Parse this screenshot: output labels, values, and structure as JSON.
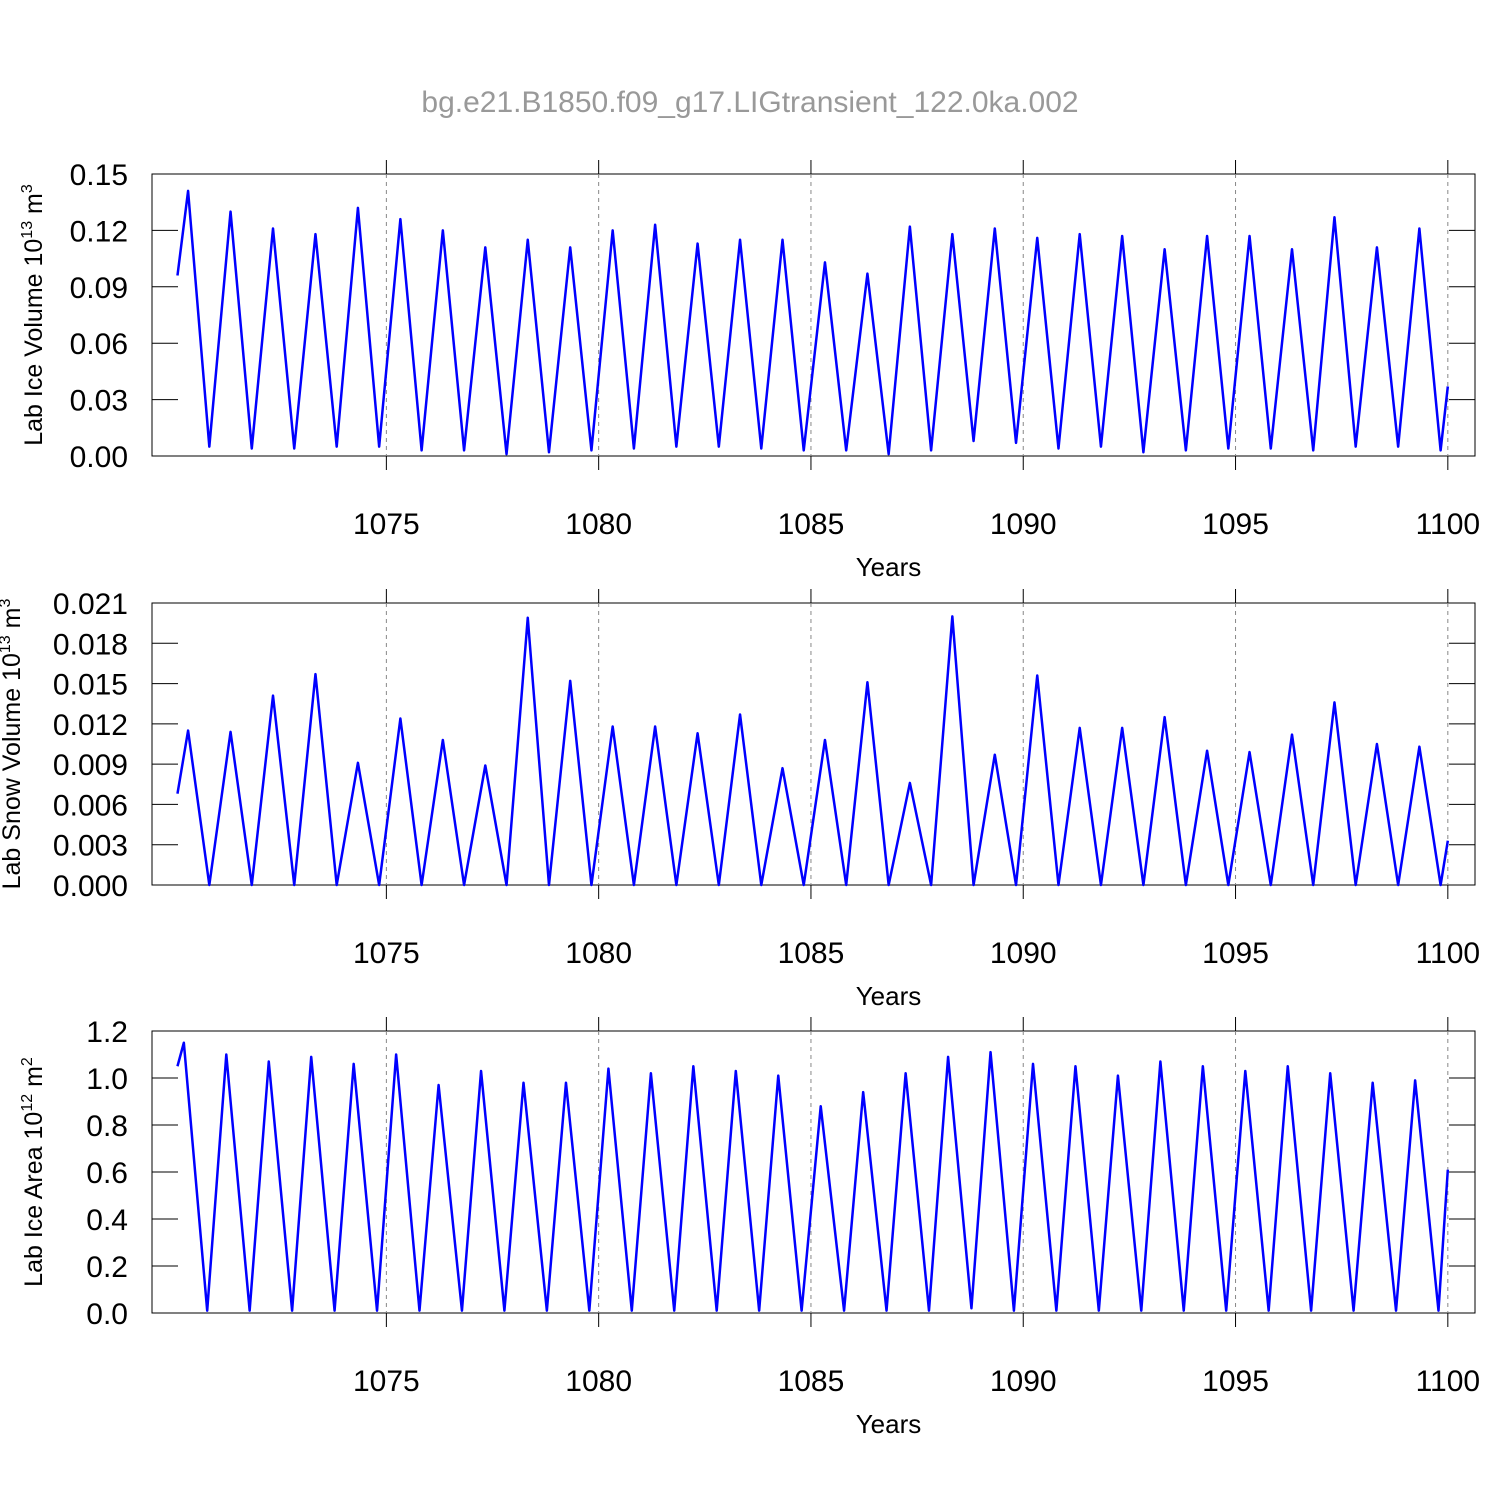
{
  "title": "bg.e21.B1850.f09_g17.LIGtransient_122.0ka.002",
  "chart_data": [
    {
      "type": "line",
      "xlabel": "Years",
      "ylabel": {
        "text": "Lab Ice Volume 10",
        "exp": "13",
        "unit": " m",
        "unit_exp": "3"
      },
      "xlim": [
        1069.48,
        1100.64
      ],
      "ylim": [
        0,
        0.15
      ],
      "xticks": [
        1075,
        1080,
        1085,
        1090,
        1095,
        1100
      ],
      "yticks": [
        {
          "value": 0,
          "label": "0.00"
        },
        0.03,
        0.06,
        0.09,
        0.12,
        0.15
      ],
      "grid": true,
      "x": [
        1070.08,
        1070.33,
        1070.83,
        1071.33,
        1071.83,
        1072.33,
        1072.83,
        1073.33,
        1073.83,
        1074.33,
        1074.83,
        1075.33,
        1075.83,
        1076.33,
        1076.83,
        1077.33,
        1077.83,
        1078.33,
        1078.83,
        1079.33,
        1079.83,
        1080.33,
        1080.83,
        1081.33,
        1081.83,
        1082.33,
        1082.83,
        1083.33,
        1083.83,
        1084.33,
        1084.83,
        1085.33,
        1085.83,
        1086.33,
        1086.83,
        1087.33,
        1087.83,
        1088.33,
        1088.83,
        1089.33,
        1089.83,
        1090.33,
        1090.83,
        1091.33,
        1091.83,
        1092.33,
        1092.83,
        1093.33,
        1093.83,
        1094.33,
        1094.83,
        1095.33,
        1095.83,
        1096.33,
        1096.83,
        1097.33,
        1097.83,
        1098.33,
        1098.83,
        1099.33,
        1099.83,
        1100.0
      ],
      "series": [
        {
          "color": "#0000ff",
          "values": [
            0.096,
            0.141,
            0.005,
            0.13,
            0.004,
            0.121,
            0.004,
            0.118,
            0.005,
            0.132,
            0.005,
            0.126,
            0.003,
            0.12,
            0.003,
            0.111,
            0.001,
            0.115,
            0.002,
            0.111,
            0.003,
            0.12,
            0.004,
            0.123,
            0.005,
            0.113,
            0.005,
            0.115,
            0.004,
            0.115,
            0.003,
            0.103,
            0.003,
            0.097,
            0.001,
            0.122,
            0.003,
            0.118,
            0.008,
            0.121,
            0.007,
            0.116,
            0.004,
            0.118,
            0.005,
            0.117,
            0.002,
            0.11,
            0.003,
            0.117,
            0.004,
            0.117,
            0.004,
            0.11,
            0.003,
            0.127,
            0.005,
            0.111,
            0.005,
            0.121,
            0.003,
            0.037
          ]
        }
      ]
    },
    {
      "type": "line",
      "xlabel": "Years",
      "ylabel": {
        "text": "Lab Snow Volume 10",
        "exp": "13",
        "unit": " m",
        "unit_exp": "3"
      },
      "xlim": [
        1069.48,
        1100.64
      ],
      "ylim": [
        0,
        0.021
      ],
      "xticks": [
        1075,
        1080,
        1085,
        1090,
        1095,
        1100
      ],
      "yticks": [
        {
          "value": 0,
          "label": "0.000"
        },
        0.003,
        0.006,
        0.009,
        0.012,
        0.015,
        0.018,
        0.021
      ],
      "grid": true,
      "x": [
        1070.08,
        1070.33,
        1070.83,
        1071.33,
        1071.83,
        1072.33,
        1072.83,
        1073.33,
        1073.83,
        1074.33,
        1074.83,
        1075.33,
        1075.83,
        1076.33,
        1076.83,
        1077.33,
        1077.83,
        1078.33,
        1078.83,
        1079.33,
        1079.83,
        1080.33,
        1080.83,
        1081.33,
        1081.83,
        1082.33,
        1082.83,
        1083.33,
        1083.83,
        1084.33,
        1084.83,
        1085.33,
        1085.83,
        1086.33,
        1086.83,
        1087.33,
        1087.83,
        1088.33,
        1088.83,
        1089.33,
        1089.83,
        1090.33,
        1090.83,
        1091.33,
        1091.83,
        1092.33,
        1092.83,
        1093.33,
        1093.83,
        1094.33,
        1094.83,
        1095.33,
        1095.83,
        1096.33,
        1096.83,
        1097.33,
        1097.83,
        1098.33,
        1098.83,
        1099.33,
        1099.83,
        1100.0
      ],
      "series": [
        {
          "color": "#0000ff",
          "values": [
            0.0068,
            0.0115,
            0,
            0.0114,
            0,
            0.0141,
            0,
            0.0157,
            0,
            0.0091,
            0,
            0.0124,
            0,
            0.0108,
            0,
            0.0089,
            0,
            0.0199,
            0,
            0.0152,
            0,
            0.0118,
            0,
            0.0118,
            0,
            0.0113,
            0,
            0.0127,
            0,
            0.0087,
            0,
            0.0108,
            0,
            0.0151,
            0,
            0.0076,
            0,
            0.02,
            0,
            0.0097,
            0,
            0.0156,
            0,
            0.0117,
            0,
            0.0117,
            0,
            0.0125,
            0,
            0.01,
            0,
            0.0099,
            0,
            0.0112,
            0,
            0.0136,
            0,
            0.0105,
            0,
            0.0103,
            0,
            0.0033
          ]
        }
      ]
    },
    {
      "type": "line",
      "xlabel": "Years",
      "ylabel": {
        "text": "Lab Ice Area 10",
        "exp": "12",
        "unit": " m",
        "unit_exp": "2"
      },
      "xlim": [
        1069.48,
        1100.64
      ],
      "ylim": [
        0,
        1.2
      ],
      "xticks": [
        1075,
        1080,
        1085,
        1090,
        1095,
        1100
      ],
      "yticks": [
        {
          "value": 0,
          "label": "0.0"
        },
        0.2,
        0.4,
        0.6,
        0.8,
        {
          "value": 1,
          "label": "1.0"
        },
        1.2
      ],
      "grid": true,
      "x": [
        1070.08,
        1070.23,
        1070.78,
        1071.23,
        1071.78,
        1072.23,
        1072.78,
        1073.23,
        1073.78,
        1074.23,
        1074.78,
        1075.23,
        1075.78,
        1076.23,
        1076.78,
        1077.23,
        1077.78,
        1078.23,
        1078.78,
        1079.23,
        1079.78,
        1080.23,
        1080.78,
        1081.23,
        1081.78,
        1082.23,
        1082.78,
        1083.23,
        1083.78,
        1084.23,
        1084.78,
        1085.23,
        1085.78,
        1086.23,
        1086.78,
        1087.23,
        1087.78,
        1088.23,
        1088.78,
        1089.23,
        1089.78,
        1090.23,
        1090.78,
        1091.23,
        1091.78,
        1092.23,
        1092.78,
        1093.23,
        1093.78,
        1094.23,
        1094.78,
        1095.23,
        1095.78,
        1096.23,
        1096.78,
        1097.23,
        1097.78,
        1098.23,
        1098.78,
        1099.23,
        1099.78,
        1100.0
      ],
      "series": [
        {
          "color": "#0000ff",
          "values": [
            1.05,
            1.15,
            0.01,
            1.1,
            0.01,
            1.07,
            0.01,
            1.09,
            0.01,
            1.06,
            0.01,
            1.1,
            0.01,
            0.97,
            0.01,
            1.03,
            0.01,
            0.98,
            0.01,
            0.98,
            0.01,
            1.04,
            0.01,
            1.02,
            0.01,
            1.05,
            0.01,
            1.03,
            0.01,
            1.01,
            0.01,
            0.88,
            0.01,
            0.94,
            0.01,
            1.02,
            0.01,
            1.09,
            0.02,
            1.11,
            0.01,
            1.06,
            0.01,
            1.05,
            0.01,
            1.01,
            0.01,
            1.07,
            0.01,
            1.05,
            0.01,
            1.03,
            0.01,
            1.05,
            0.01,
            1.02,
            0.01,
            0.98,
            0.01,
            0.99,
            0.01,
            0.61
          ]
        }
      ]
    }
  ]
}
